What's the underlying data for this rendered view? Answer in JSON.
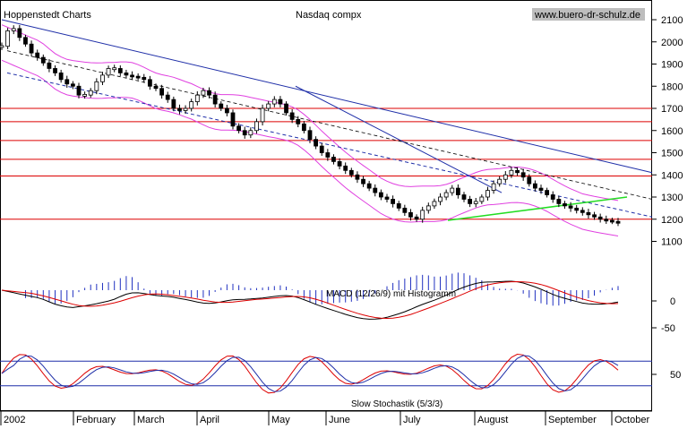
{
  "chart_data": {
    "type": "candlestick",
    "title": "Nasdaq compx",
    "source_label": "Hoppenstedt Charts",
    "watermark": "www.buero-dr-schulz.de",
    "x_axis": {
      "labels": [
        "2002",
        "February",
        "March",
        "April",
        "May",
        "June",
        "July",
        "August",
        "September",
        "October"
      ]
    },
    "price_panel": {
      "ylim": [
        1100,
        2150
      ],
      "y_ticks": [
        1100,
        1200,
        1300,
        1400,
        1500,
        1600,
        1700,
        1800,
        1900,
        2000,
        2100
      ],
      "horizontal_levels": [
        1200,
        1395,
        1470,
        1555,
        1640,
        1700
      ],
      "trendline_colors": {
        "long_trend": "#1f2fa8",
        "support": "#22dd22",
        "bands": "#e040e0",
        "levels": "#dd0000"
      },
      "trading_days": 200,
      "close_series": [
        1980,
        2050,
        2060,
        2020,
        1990,
        1950,
        1930,
        1905,
        1880,
        1860,
        1830,
        1810,
        1800,
        1760,
        1760,
        1780,
        1820,
        1850,
        1880,
        1880,
        1860,
        1850,
        1845,
        1840,
        1830,
        1800,
        1790,
        1760,
        1740,
        1700,
        1690,
        1700,
        1730,
        1760,
        1780,
        1760,
        1720,
        1700,
        1680,
        1620,
        1600,
        1580,
        1600,
        1640,
        1700,
        1720,
        1740,
        1720,
        1680,
        1650,
        1630,
        1600,
        1560,
        1530,
        1500,
        1480,
        1460,
        1440,
        1420,
        1400,
        1380,
        1360,
        1340,
        1320,
        1300,
        1290,
        1270,
        1250,
        1230,
        1210,
        1200,
        1240,
        1260,
        1280,
        1300,
        1320,
        1340,
        1310,
        1290,
        1270,
        1280,
        1300,
        1330,
        1360,
        1380,
        1400,
        1420,
        1410,
        1390,
        1360,
        1340,
        1330,
        1310,
        1290,
        1270,
        1260,
        1250,
        1240,
        1230,
        1220,
        1210,
        1200,
        1195,
        1190,
        1185
      ]
    },
    "macd_panel": {
      "label": "MACD (12/26/9) mit Histogramm",
      "y_ticks": [
        0,
        -50
      ]
    },
    "stochastic_panel": {
      "label": "Slow Stochastik (5/3/3)",
      "y_ticks": [
        50
      ],
      "bands": [
        20,
        80
      ]
    }
  }
}
